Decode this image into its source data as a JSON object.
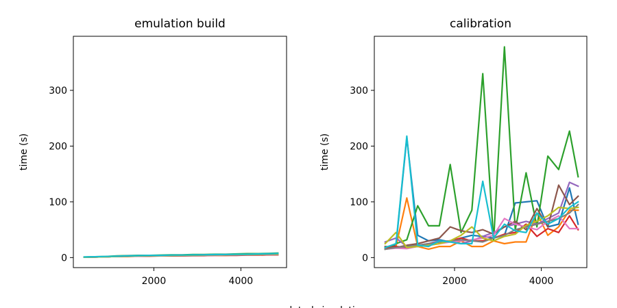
{
  "figure": {
    "xlabel": "no. completed simulations",
    "palette": [
      "#1f77b4",
      "#ff7f0e",
      "#2ca02c",
      "#d62728",
      "#9467bd",
      "#8c564b",
      "#e377c2",
      "#7f7f7f",
      "#bcbd22",
      "#17becf"
    ]
  },
  "chart_data": [
    {
      "type": "line",
      "title": "emulation build",
      "xlabel": "",
      "ylabel": "time (s)",
      "xlim": [
        150,
        5050
      ],
      "ylim": [
        -18,
        397
      ],
      "xticks": [
        2000,
        4000
      ],
      "yticks": [
        0,
        100,
        200,
        300
      ],
      "x": [
        400,
        650,
        900,
        1150,
        1400,
        1650,
        1900,
        2150,
        2400,
        2650,
        2900,
        3150,
        3400,
        3650,
        3900,
        4150,
        4400,
        4650,
        4850
      ],
      "series": [
        {
          "values": [
            0.5,
            1,
            1.5,
            2,
            2.5,
            3,
            3,
            3.5,
            3.5,
            3.5,
            4,
            4,
            4.5,
            4.5,
            5,
            5,
            5.5,
            6,
            6
          ]
        },
        {
          "values": [
            0.5,
            1,
            1.5,
            2,
            2,
            2.5,
            3,
            3,
            3,
            3.5,
            3.5,
            3.5,
            4,
            4,
            4.5,
            4.5,
            4.5,
            5,
            5
          ]
        },
        {
          "values": [
            1,
            1.5,
            2,
            3,
            3.5,
            4,
            4,
            4.5,
            5,
            5,
            5.5,
            5.5,
            6,
            6,
            6.5,
            7,
            7,
            7.5,
            8
          ]
        },
        {
          "values": [
            0.5,
            1,
            1.5,
            2,
            2,
            2.5,
            2.5,
            3,
            3,
            3,
            3.5,
            3.5,
            4,
            4,
            4,
            4.5,
            4.5,
            5,
            5
          ]
        },
        {
          "values": [
            0.5,
            1,
            1.5,
            2.5,
            3,
            3.5,
            3.5,
            4,
            4,
            4.5,
            4.5,
            5,
            5,
            5.5,
            5.5,
            6,
            6,
            6.5,
            7
          ]
        },
        {
          "values": [
            0.5,
            1,
            1.5,
            2,
            2.5,
            3,
            3,
            3.5,
            3.5,
            4,
            4,
            4,
            4.5,
            4.5,
            5,
            5,
            5.5,
            5.5,
            6
          ]
        },
        {
          "values": [
            0.5,
            1,
            1.5,
            2,
            2.5,
            2.5,
            3,
            3,
            3.5,
            3.5,
            4,
            4,
            4,
            4.5,
            4.5,
            5,
            5,
            5.5,
            5.5
          ]
        },
        {
          "values": [
            0.5,
            1,
            1.5,
            2,
            2.5,
            3,
            3,
            3.5,
            3.5,
            4,
            4,
            4.5,
            4.5,
            5,
            5,
            5.5,
            5.5,
            6,
            6
          ]
        },
        {
          "values": [
            0.5,
            1,
            1.5,
            2,
            2.5,
            3,
            3.5,
            3.5,
            4,
            4,
            4.5,
            4.5,
            5,
            5,
            5.5,
            5.5,
            6,
            6.5,
            6.5
          ]
        },
        {
          "values": [
            1,
            1.5,
            2,
            2.5,
            3,
            3.5,
            4,
            4,
            4.5,
            4.5,
            5,
            5,
            5.5,
            5.5,
            6,
            6,
            6.5,
            7,
            7.5
          ]
        }
      ]
    },
    {
      "type": "line",
      "title": "calibration",
      "xlabel": "",
      "ylabel": "time (s)",
      "xlim": [
        150,
        5050
      ],
      "ylim": [
        -18,
        397
      ],
      "xticks": [
        2000,
        4000
      ],
      "yticks": [
        0,
        100,
        200,
        300
      ],
      "x": [
        400,
        650,
        900,
        1150,
        1400,
        1650,
        1900,
        2150,
        2400,
        2650,
        2900,
        3150,
        3400,
        3650,
        3900,
        4150,
        4400,
        4650,
        4850
      ],
      "series": [
        {
          "values": [
            18,
            22,
            215,
            40,
            30,
            32,
            28,
            35,
            40,
            38,
            35,
            40,
            98,
            100,
            102,
            55,
            60,
            125,
            60
          ]
        },
        {
          "values": [
            15,
            20,
            107,
            20,
            15,
            20,
            20,
            30,
            20,
            20,
            30,
            25,
            28,
            28,
            80,
            40,
            55,
            85,
            85
          ]
        },
        {
          "values": [
            15,
            25,
            32,
            93,
            57,
            57,
            167,
            45,
            85,
            330,
            30,
            378,
            50,
            152,
            55,
            182,
            158,
            227,
            145
          ]
        },
        {
          "values": [
            18,
            20,
            18,
            20,
            25,
            28,
            30,
            35,
            30,
            30,
            35,
            42,
            45,
            60,
            38,
            52,
            45,
            75,
            50
          ]
        },
        {
          "values": [
            28,
            35,
            20,
            22,
            25,
            30,
            28,
            25,
            30,
            38,
            45,
            55,
            60,
            65,
            60,
            70,
            80,
            135,
            128
          ]
        },
        {
          "values": [
            20,
            18,
            22,
            25,
            30,
            35,
            55,
            48,
            45,
            50,
            42,
            55,
            65,
            50,
            88,
            55,
            130,
            95,
            110
          ]
        },
        {
          "values": [
            15,
            17,
            16,
            20,
            22,
            25,
            28,
            30,
            32,
            35,
            40,
            70,
            60,
            55,
            50,
            65,
            75,
            52,
            52
          ]
        },
        {
          "values": [
            15,
            18,
            20,
            22,
            25,
            28,
            30,
            32,
            30,
            28,
            35,
            40,
            50,
            55,
            60,
            65,
            70,
            80,
            95
          ]
        },
        {
          "values": [
            25,
            45,
            18,
            20,
            22,
            25,
            30,
            40,
            55,
            35,
            30,
            38,
            42,
            58,
            65,
            75,
            90,
            88,
            90
          ]
        },
        {
          "values": [
            18,
            25,
            218,
            22,
            20,
            30,
            28,
            25,
            25,
            137,
            35,
            60,
            48,
            45,
            80,
            60,
            70,
            90,
            100
          ]
        }
      ]
    }
  ]
}
